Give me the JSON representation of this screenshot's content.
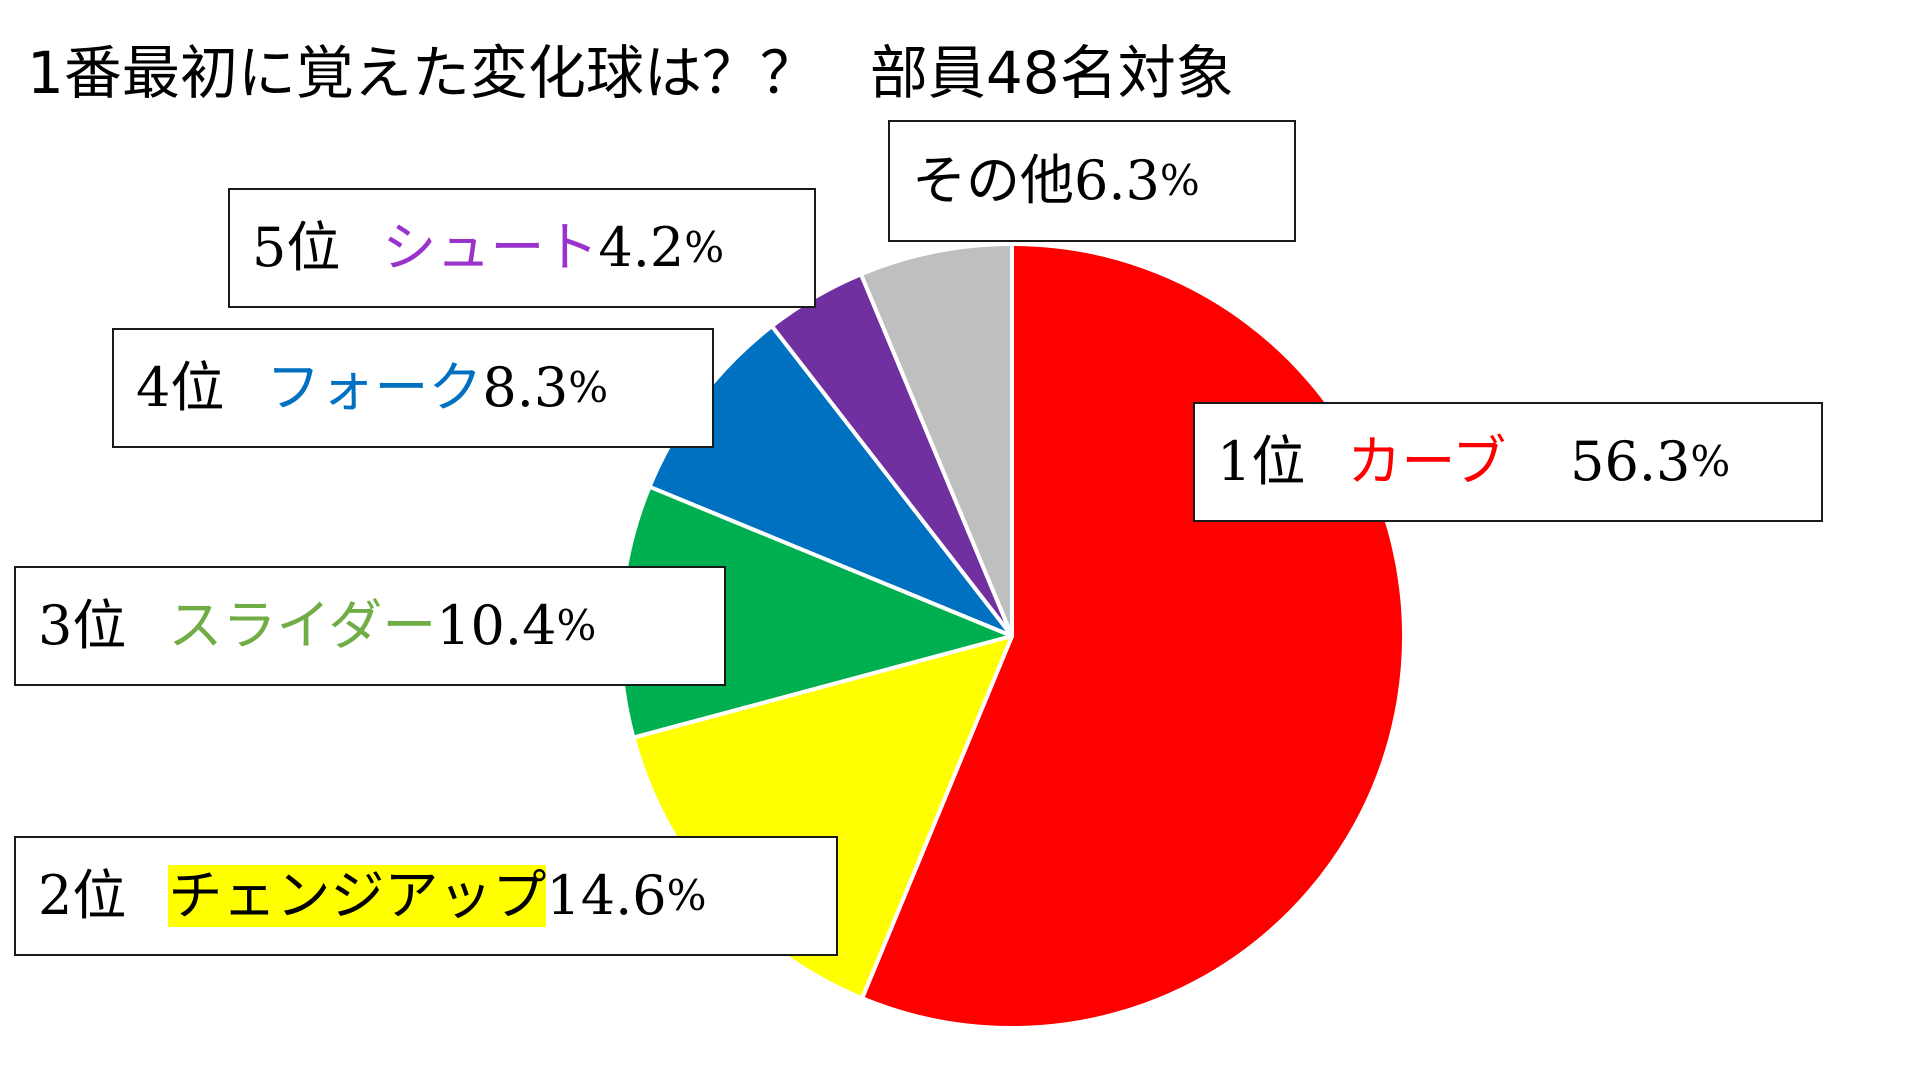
{
  "chart_data": {
    "type": "pie",
    "title_main": "1番最初に覚えた変化球は？？",
    "title_sub": "部員48名対象",
    "slices": [
      {
        "rank": "1位",
        "name": "カーブ",
        "value": 56.3,
        "value_text": "56.3",
        "color": "#ff0000",
        "name_color": "#ff0000"
      },
      {
        "rank": "2位",
        "name": "チェンジアップ",
        "value": 14.6,
        "value_text": "14.6",
        "color": "#ffff00",
        "name_color": "#000000"
      },
      {
        "rank": "3位",
        "name": "スライダー",
        "value": 10.4,
        "value_text": "10.4",
        "color": "#00b050",
        "name_color": "#70ad47"
      },
      {
        "rank": "4位",
        "name": "フォーク",
        "value": 8.3,
        "value_text": "8.3",
        "color": "#0070c0",
        "name_color": "#0070c0"
      },
      {
        "rank": "5位",
        "name": "シュート",
        "value": 4.2,
        "value_text": "4.2",
        "color": "#7030a0",
        "name_color": "#9933cc"
      },
      {
        "rank": "",
        "name": "その他",
        "value": 6.3,
        "value_text": "6.3",
        "color": "#bfbfbf",
        "name_color": "#000000"
      }
    ],
    "percent_sign": "%",
    "start_angle": "12 o'clock",
    "direction": "clockwise",
    "legend": "none"
  }
}
